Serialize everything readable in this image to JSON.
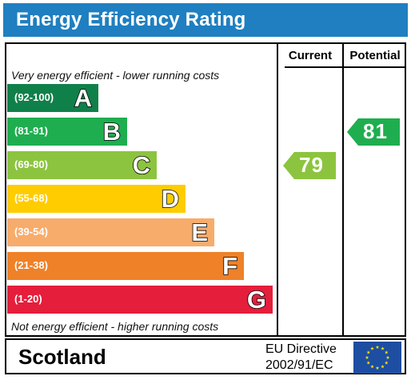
{
  "header": {
    "title": "Energy Efficiency Rating"
  },
  "columns": {
    "current": "Current",
    "potential": "Potential"
  },
  "captions": {
    "top": "Very energy efficient - lower running costs",
    "bottom": "Not energy efficient - higher running costs"
  },
  "footer": {
    "region": "Scotland",
    "directive_line1": "EU Directive",
    "directive_line2": "2002/91/EC"
  },
  "chart_data": {
    "type": "bar",
    "bands": [
      {
        "range": "(92-100)",
        "letter": "A",
        "color": "#10804a"
      },
      {
        "range": "(81-91)",
        "letter": "B",
        "color": "#1eae4f"
      },
      {
        "range": "(69-80)",
        "letter": "C",
        "color": "#8cc43f"
      },
      {
        "range": "(55-68)",
        "letter": "D",
        "color": "#ffcc00"
      },
      {
        "range": "(39-54)",
        "letter": "E",
        "color": "#f7ac6c"
      },
      {
        "range": "(21-38)",
        "letter": "F",
        "color": "#ef8128"
      },
      {
        "range": "(1-20)",
        "letter": "G",
        "color": "#e41e3b"
      }
    ],
    "current": {
      "value": 79,
      "band": "C",
      "color": "#8cc43f"
    },
    "potential": {
      "value": 81,
      "band": "B",
      "color": "#1eae4f"
    }
  }
}
